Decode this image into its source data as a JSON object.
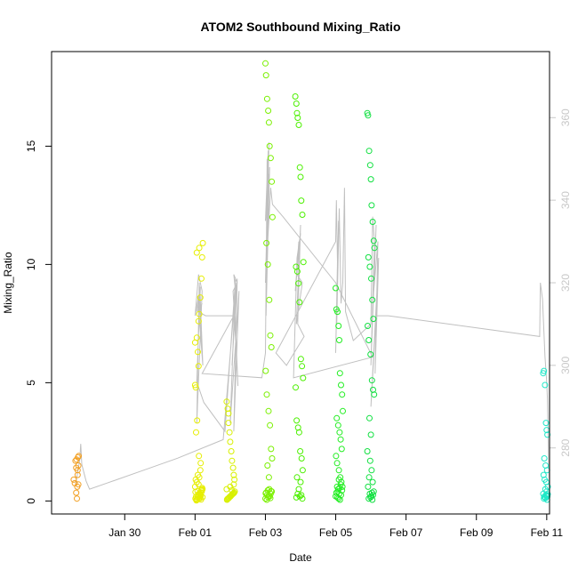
{
  "chart_data": {
    "type": "scatter",
    "title": "ATOM2 Southbound Mixing_Ratio",
    "xlabel": "Date",
    "ylabel": "Mixing_Ratio",
    "x_unit": "days since Jan 28",
    "xlim": [
      -0.08,
      14.08
    ],
    "ylim": [
      -0.55,
      19.0
    ],
    "y2lim": [
      264.0,
      376.0
    ],
    "x_ticks": [
      {
        "value": 2,
        "label": "Jan 30"
      },
      {
        "value": 4,
        "label": "Feb 01"
      },
      {
        "value": 6,
        "label": "Feb 03"
      },
      {
        "value": 8,
        "label": "Feb 05"
      },
      {
        "value": 10,
        "label": "Feb 07"
      },
      {
        "value": 12,
        "label": "Feb 09"
      },
      {
        "value": 14,
        "label": "Feb 11"
      }
    ],
    "y_ticks": [
      0,
      5,
      10,
      15
    ],
    "y2_ticks": [
      280,
      300,
      320,
      340,
      360
    ],
    "grid": false,
    "line_color": "#c0c0c0",
    "secondary_line_series": [
      [
        0.6,
        271
      ],
      [
        0.72,
        277
      ],
      [
        0.75,
        281
      ],
      [
        0.78,
        276
      ],
      [
        0.9,
        272
      ],
      [
        1.0,
        270
      ],
      [
        1.5,
        271.5
      ],
      [
        2.5,
        274.5
      ],
      [
        3.5,
        277.5
      ],
      [
        4.8,
        282
      ],
      [
        5.15,
        318
      ],
      [
        5.1,
        322
      ],
      [
        5.2,
        320
      ],
      [
        5.08,
        318
      ],
      [
        5.22,
        295
      ],
      [
        5.12,
        316
      ],
      [
        5.18,
        320
      ],
      [
        5.05,
        300
      ],
      [
        5.2,
        321
      ],
      [
        5.1,
        284
      ],
      [
        5.25,
        318
      ],
      [
        5.0,
        286
      ],
      [
        5.15,
        321
      ],
      [
        4.85,
        284
      ],
      [
        4.25,
        291
      ],
      [
        4.05,
        296
      ],
      [
        4.15,
        319
      ],
      [
        4.0,
        312
      ],
      [
        4.1,
        322
      ],
      [
        4.2,
        318
      ],
      [
        4.05,
        286
      ],
      [
        4.12,
        320
      ],
      [
        4.18,
        305
      ],
      [
        4.08,
        316
      ],
      [
        4.22,
        300
      ],
      [
        4.14,
        318
      ],
      [
        4.06,
        313
      ],
      [
        4.2,
        315
      ],
      [
        4.1,
        313
      ],
      [
        4.3,
        312
      ],
      [
        5.1,
        312
      ],
      [
        4.2,
        298
      ],
      [
        5.9,
        297
      ],
      [
        6.0,
        303
      ],
      [
        6.05,
        350
      ],
      [
        6.1,
        345
      ],
      [
        6.0,
        335
      ],
      [
        6.08,
        352
      ],
      [
        6.02,
        312
      ],
      [
        6.12,
        348
      ],
      [
        6.05,
        330
      ],
      [
        6.1,
        354
      ],
      [
        6.0,
        320
      ],
      [
        6.15,
        343
      ],
      [
        6.2,
        339
      ],
      [
        6.5,
        336
      ],
      [
        8.0,
        320
      ],
      [
        9.05,
        302
      ],
      [
        6.8,
        297
      ],
      [
        6.9,
        326
      ],
      [
        7.0,
        332
      ],
      [
        6.85,
        318
      ],
      [
        6.95,
        330
      ],
      [
        6.9,
        322
      ],
      [
        7.05,
        320
      ],
      [
        6.88,
        310
      ],
      [
        7.0,
        334
      ],
      [
        6.92,
        310
      ],
      [
        7.1,
        307
      ],
      [
        6.6,
        300
      ],
      [
        6.3,
        303
      ],
      [
        8.0,
        330
      ],
      [
        8.02,
        340
      ],
      [
        8.05,
        325
      ],
      [
        8.0,
        303
      ],
      [
        8.08,
        335
      ],
      [
        8.03,
        310
      ],
      [
        8.1,
        338
      ],
      [
        8.15,
        315
      ],
      [
        8.2,
        320
      ],
      [
        8.25,
        343
      ],
      [
        8.28,
        313
      ],
      [
        8.5,
        306
      ],
      [
        9.0,
        310
      ],
      [
        9.05,
        336
      ],
      [
        9.1,
        330
      ],
      [
        9.0,
        300
      ],
      [
        9.15,
        334
      ],
      [
        9.08,
        318
      ],
      [
        9.2,
        330
      ],
      [
        9.12,
        298
      ],
      [
        9.22,
        326
      ],
      [
        9.0,
        290
      ],
      [
        9.15,
        312
      ],
      [
        9.5,
        312
      ],
      [
        13.8,
        307
      ],
      [
        13.82,
        320
      ],
      [
        13.88,
        316
      ],
      [
        13.95,
        302
      ],
      [
        14.0,
        296
      ],
      [
        14.02,
        292
      ],
      [
        14.05,
        278
      ],
      [
        14.08,
        270
      ]
    ],
    "series": [
      {
        "color": "#f2a024",
        "x": [
          0.55,
          0.58,
          0.62,
          0.64,
          0.65,
          0.68,
          0.66,
          0.68,
          0.6,
          0.63,
          0.67,
          0.69,
          0.62,
          0.66
        ],
        "y": [
          0.9,
          0.75,
          0.35,
          0.1,
          0.6,
          0.7,
          1.3,
          1.5,
          1.7,
          1.75,
          1.85,
          1.9,
          1.4,
          1.1
        ]
      },
      {
        "color": "#e6ee00",
        "x": [
          4.0,
          4.02,
          4.05,
          4.08,
          4.1,
          4.12,
          4.15,
          4.18,
          4.2,
          4.22,
          4.03,
          4.06,
          4.11,
          4.16,
          4.01,
          4.09,
          4.13,
          4.19,
          4.04,
          4.07,
          4.14,
          4.17,
          4.21,
          4.0,
          4.1,
          4.05,
          4.12,
          4.08,
          4.15,
          4.02,
          4.2,
          4.18,
          4.06,
          4.11,
          4.03,
          4.16,
          4.09,
          4.13,
          4.01,
          4.07,
          4.19,
          4.04,
          4.17,
          4.14,
          4.21,
          4.05,
          4.12,
          4.0,
          4.1
        ],
        "y": [
          4.9,
          4.8,
          6.9,
          6.3,
          7.6,
          7.9,
          8.6,
          9.4,
          10.3,
          10.9,
          2.9,
          3.4,
          1.9,
          1.6,
          0.1,
          0.2,
          0.3,
          0.4,
          0.05,
          0.15,
          0.25,
          0.35,
          0.5,
          0.6,
          0.7,
          0.8,
          1.0,
          1.1,
          1.3,
          0.9,
          0.55,
          0.45,
          0.08,
          0.12,
          0.18,
          0.22,
          0.28,
          0.32,
          0.38,
          0.42,
          0.48,
          0.02,
          0.06,
          0.11,
          0.16,
          10.5,
          10.7,
          6.7,
          5.7
        ]
      },
      {
        "color": "#d8f000",
        "x": [
          4.9,
          4.93,
          4.95,
          4.98,
          5.0,
          5.03,
          5.05,
          5.08,
          5.1,
          5.12,
          4.91,
          4.94,
          4.97,
          5.01,
          5.04,
          5.07,
          5.11,
          4.92,
          4.96,
          4.99,
          5.02,
          5.06,
          5.09,
          5.13,
          4.9,
          5.0,
          5.1,
          4.95,
          5.05
        ],
        "y": [
          4.2,
          3.9,
          3.3,
          2.9,
          2.5,
          2.1,
          1.7,
          1.4,
          1.1,
          0.9,
          0.05,
          0.1,
          0.15,
          0.2,
          0.25,
          0.3,
          0.35,
          0.08,
          0.12,
          0.18,
          0.22,
          0.28,
          0.32,
          0.4,
          0.5,
          0.6,
          0.7,
          3.7,
          0.45
        ]
      },
      {
        "color": "#7af000",
        "x": [
          6.0,
          6.02,
          6.05,
          6.08,
          6.1,
          6.12,
          6.15,
          6.18,
          6.2,
          6.03,
          6.07,
          6.11,
          6.14,
          6.17,
          6.01,
          6.04,
          6.09,
          6.13,
          6.16,
          6.19,
          6.06,
          6.1,
          6.0,
          6.08,
          6.12,
          6.05,
          6.15,
          6.02,
          6.18,
          6.07,
          6.11,
          6.04,
          6.14,
          6.09,
          6.01,
          6.16
        ],
        "y": [
          18.5,
          18.0,
          17.0,
          16.5,
          16.0,
          15.0,
          14.5,
          13.5,
          12.0,
          10.9,
          10.0,
          8.5,
          7.0,
          6.5,
          5.5,
          4.5,
          3.8,
          3.2,
          2.2,
          1.8,
          1.5,
          1.0,
          0.1,
          0.15,
          0.2,
          0.25,
          0.3,
          0.35,
          0.4,
          0.45,
          0.5,
          0.05,
          0.12,
          0.22,
          0.32,
          0.42
        ]
      },
      {
        "color": "#4cf000",
        "x": [
          6.85,
          6.88,
          6.9,
          6.92,
          6.95,
          6.98,
          7.0,
          7.02,
          7.05,
          7.08,
          6.87,
          6.91,
          6.94,
          6.97,
          7.01,
          7.04,
          7.07,
          6.86,
          6.89,
          6.93,
          6.96,
          6.99,
          7.03,
          7.06,
          6.9,
          7.0,
          6.95,
          7.05,
          6.88,
          6.98,
          7.02,
          6.92
        ],
        "y": [
          17.1,
          16.8,
          16.4,
          16.2,
          15.9,
          14.1,
          13.7,
          12.7,
          12.1,
          10.1,
          9.9,
          9.7,
          9.2,
          8.4,
          6.0,
          5.7,
          5.2,
          4.8,
          3.4,
          3.1,
          2.9,
          2.1,
          1.8,
          1.3,
          1.0,
          0.8,
          0.5,
          0.1,
          0.15,
          0.2,
          0.25,
          0.3
        ]
      },
      {
        "color": "#22ee22",
        "x": [
          8.0,
          8.02,
          8.05,
          8.08,
          8.1,
          8.12,
          8.15,
          8.18,
          8.2,
          8.03,
          8.07,
          8.11,
          8.14,
          8.17,
          8.01,
          8.04,
          8.09,
          8.13,
          8.16,
          8.19,
          8.06,
          8.1,
          8.0,
          8.08,
          8.12,
          8.05,
          8.15,
          8.02,
          8.18,
          8.07,
          8.11,
          8.04,
          8.14,
          8.09
        ],
        "y": [
          9.0,
          8.1,
          8.0,
          7.4,
          6.8,
          5.4,
          4.9,
          4.5,
          3.8,
          3.5,
          3.2,
          2.9,
          2.6,
          2.2,
          1.9,
          1.6,
          1.3,
          1.0,
          0.8,
          0.6,
          0.4,
          0.3,
          0.2,
          0.1,
          0.05,
          0.15,
          0.25,
          0.35,
          0.45,
          0.5,
          0.55,
          0.6,
          0.7,
          0.9
        ]
      },
      {
        "color": "#10e040",
        "x": [
          8.9,
          8.92,
          8.95,
          8.98,
          9.0,
          9.02,
          9.05,
          9.08,
          9.1,
          8.93,
          8.97,
          9.01,
          9.04,
          9.07,
          8.91,
          8.94,
          8.99,
          9.03,
          9.06,
          9.09,
          8.96,
          9.0,
          8.9,
          8.98,
          9.02,
          8.95,
          9.05,
          8.92,
          9.08,
          8.97,
          9.01,
          8.94,
          9.04,
          8.99,
          9.06,
          9.03
        ],
        "y": [
          16.4,
          16.3,
          14.8,
          14.2,
          13.6,
          12.5,
          11.8,
          11.0,
          10.7,
          10.3,
          9.9,
          9.4,
          8.5,
          7.7,
          7.4,
          6.8,
          6.2,
          5.1,
          4.7,
          4.5,
          3.5,
          2.8,
          2.1,
          1.7,
          1.3,
          1.0,
          0.8,
          0.6,
          0.4,
          0.3,
          0.2,
          0.1,
          0.05,
          0.15,
          0.25,
          0.35
        ]
      },
      {
        "color": "#20e8c8",
        "x": [
          13.9,
          13.92,
          13.95,
          13.98,
          14.0,
          14.02,
          13.93,
          13.97,
          14.01,
          13.91,
          13.94,
          13.99,
          14.03,
          13.96,
          14.0,
          13.9,
          13.98,
          14.02,
          13.95,
          13.92,
          14.01,
          13.97,
          13.93,
          13.99,
          14.03
        ],
        "y": [
          5.4,
          5.5,
          4.9,
          3.3,
          3.0,
          2.8,
          1.8,
          1.5,
          1.3,
          1.1,
          0.9,
          0.8,
          0.6,
          0.5,
          0.4,
          0.3,
          0.25,
          0.2,
          0.15,
          0.1,
          0.05,
          0.12,
          0.18,
          0.22,
          0.28
        ]
      }
    ]
  }
}
